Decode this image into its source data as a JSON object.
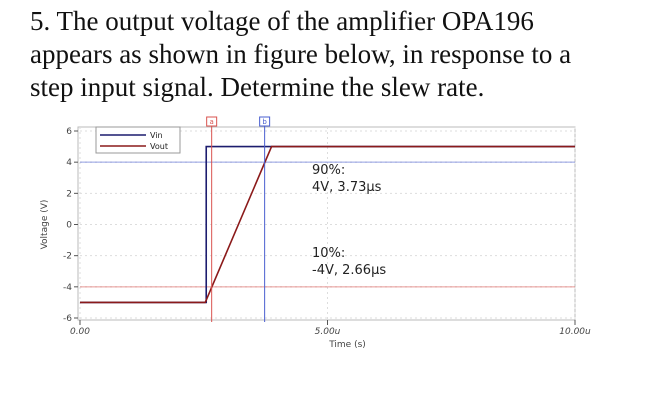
{
  "question_lines": [
    "5. The output voltage of the amplifier OPA196",
    "appears as shown in figure below, in response to a",
    "step input signal. Determine the slew rate."
  ],
  "chart_data": {
    "type": "line",
    "xlabel": "Time (s)",
    "ylabel": "Voltage (V)",
    "xlim": [
      0,
      10
    ],
    "ylim": [
      -6,
      6
    ],
    "xticks": [
      {
        "value": 0,
        "label": "0.00"
      },
      {
        "value": 5,
        "label": "5.00u"
      },
      {
        "value": 10,
        "label": "10.00u"
      }
    ],
    "yticks": [
      6,
      4,
      2,
      0,
      -2,
      -4,
      -6
    ],
    "grid": true,
    "legend": "upper left",
    "series": [
      {
        "name": "Vin",
        "color": "#1c1c6e",
        "x": [
          0,
          2.55,
          2.55,
          10
        ],
        "values": [
          -5,
          -5,
          5,
          5
        ]
      },
      {
        "name": "Vout",
        "color": "#8b1a1a",
        "x": [
          0,
          2.53,
          3.87,
          10
        ],
        "values": [
          -5,
          -5,
          5,
          5
        ]
      }
    ],
    "cursors": [
      {
        "label": "a",
        "x": 2.66,
        "y": -4,
        "color": "#d9534f"
      },
      {
        "label": "b",
        "x": 3.73,
        "y": 4,
        "color": "#4a5fd0"
      }
    ],
    "annotations": [
      {
        "lines": [
          "90%:",
          "4V, 3.73µs"
        ],
        "x": 3.73,
        "y": 4
      },
      {
        "lines": [
          "10%:",
          "-4V, 2.66µs"
        ],
        "x": 2.66,
        "y": -4
      }
    ]
  }
}
